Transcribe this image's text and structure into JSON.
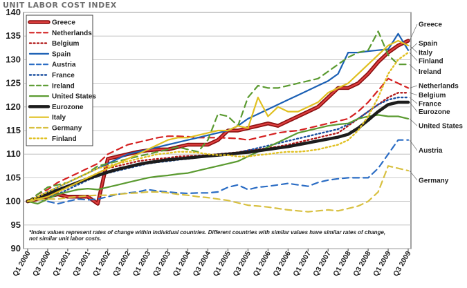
{
  "chart_data": {
    "type": "line",
    "title": "UNIT LABOR COST INDEX",
    "ylim": [
      90,
      140
    ],
    "yticks": [
      90,
      95,
      100,
      105,
      110,
      115,
      120,
      125,
      130,
      135,
      140
    ],
    "categories": [
      "Q1 2000",
      "Q2 2000",
      "Q3 2000",
      "Q4 2000",
      "Q1 2001",
      "Q2 2001",
      "Q3 2001",
      "Q4 2001",
      "Q1 2002",
      "Q2 2002",
      "Q3 2002",
      "Q4 2002",
      "Q1 2003",
      "Q2 2003",
      "Q3 2003",
      "Q4 2003",
      "Q1 2004",
      "Q2 2004",
      "Q3 2004",
      "Q4 2004",
      "Q1 2005",
      "Q2 2005",
      "Q3 2005",
      "Q4 2005",
      "Q1 2006",
      "Q2 2006",
      "Q3 2006",
      "Q4 2006",
      "Q1 2007",
      "Q2 2007",
      "Q3 2007",
      "Q4 2007",
      "Q1 2008",
      "Q2 2008",
      "Q3 2008",
      "Q4 2008",
      "Q1 2009",
      "Q2 2009",
      "Q3 2009"
    ],
    "xtick_labels": [
      "Q1 2000",
      "Q3 2000",
      "Q1 2001",
      "Q3 2001",
      "Q1 2002",
      "Q3 2002",
      "Q1 2003",
      "Q3 2003",
      "Q1 2004",
      "Q3 2004",
      "Q1 2005",
      "Q3 2005",
      "Q1 2006",
      "Q3 2006",
      "Q1 2007",
      "Q3 2007",
      "Q1 2008",
      "Q3 2008",
      "Q1 2009",
      "Q3 2009"
    ],
    "grid": true,
    "legend_position": "top-left",
    "note_lines": [
      "*Index values represent rates of change within individual countries.  Different countries with similar values have similar rates of change,",
      "not similar unit labor costs."
    ],
    "series": [
      {
        "name": "Greece",
        "color": "#c01818",
        "style": "greece",
        "label": "Greece",
        "values": [
          100,
          100.5,
          101,
          101.5,
          101,
          101,
          101,
          99.5,
          109,
          109.5,
          110,
          110.5,
          110.8,
          111,
          111,
          111.5,
          112,
          112,
          112,
          113,
          115,
          115,
          115.5,
          116,
          116.5,
          116,
          117,
          118,
          119,
          120,
          122,
          124,
          124,
          125,
          127,
          129.5,
          131.5,
          133,
          134
        ]
      },
      {
        "name": "Netherlands",
        "color": "#d42020",
        "style": "dash",
        "label": "Netherlands",
        "values": [
          100,
          101.5,
          102.5,
          104,
          105,
          106,
          107,
          108,
          110,
          111,
          112,
          112.5,
          113,
          113.5,
          113.8,
          113.8,
          113.7,
          113.5,
          113.5,
          113.5,
          113.4,
          113.3,
          113,
          113.5,
          114,
          114.5,
          114.8,
          115,
          115.5,
          116,
          116.5,
          117,
          117.5,
          119,
          121,
          123.5,
          126,
          125,
          124
        ]
      },
      {
        "name": "Belgium",
        "color": "#b01818",
        "style": "dot",
        "label": "Belgium",
        "values": [
          100,
          101,
          101.5,
          102,
          103,
          104,
          105,
          106,
          107,
          107.5,
          108,
          108.5,
          108.8,
          109,
          109.2,
          109.5,
          109.6,
          109.7,
          109.8,
          110,
          110.2,
          110.4,
          110.8,
          111,
          111.3,
          111.6,
          112,
          112.5,
          113,
          113.5,
          114,
          114.5,
          116,
          117.5,
          119,
          120.5,
          122,
          123,
          123
        ]
      },
      {
        "name": "Spain",
        "color": "#1a5fb4",
        "style": "solid",
        "label": "Spain",
        "values": [
          100,
          101,
          102,
          103,
          104,
          105,
          106,
          107,
          108,
          109,
          110,
          110.5,
          111,
          111.5,
          112,
          112.5,
          113,
          113.5,
          114,
          114.5,
          115,
          116,
          117.5,
          118.5,
          119.5,
          120.5,
          121.5,
          122.5,
          123.5,
          124.5,
          125.5,
          127,
          131.5,
          131.5,
          131.8,
          132,
          132.2,
          135.5,
          132
        ]
      },
      {
        "name": "Austria",
        "color": "#2a6cc4",
        "style": "dash",
        "label": "Austria",
        "values": [
          100,
          100.5,
          100,
          99.5,
          100,
          100.5,
          100.3,
          100.5,
          101,
          101.5,
          101.8,
          102,
          102.5,
          102.2,
          102,
          101.8,
          101.7,
          101.8,
          101.8,
          102,
          103,
          103.5,
          102.5,
          103,
          103.2,
          103.5,
          103.8,
          103.5,
          103.2,
          104,
          104.5,
          104.8,
          105,
          105,
          105,
          107,
          110,
          113,
          113
        ]
      },
      {
        "name": "France",
        "color": "#1a4fa0",
        "style": "dot",
        "label": "France",
        "values": [
          100,
          100.5,
          101,
          101.5,
          102.5,
          103.5,
          104.5,
          105.3,
          106,
          106.5,
          107,
          107.5,
          108,
          108.3,
          108.5,
          108.8,
          109,
          109.3,
          109.5,
          109.7,
          110,
          110.3,
          110.8,
          111.3,
          111.8,
          112.3,
          112.8,
          113.3,
          113.8,
          114.3,
          114.8,
          115.3,
          116.3,
          117.5,
          119,
          120.5,
          121.5,
          122,
          122
        ]
      },
      {
        "name": "Ireland",
        "color": "#5a9a30",
        "style": "dash",
        "label": "Ireland",
        "values": [
          100,
          101.5,
          103,
          103.5,
          104,
          105,
          106,
          107.5,
          108,
          108.5,
          109,
          109.5,
          110,
          110.5,
          111,
          111.5,
          111,
          110.5,
          113,
          118.5,
          118,
          116,
          122,
          124.5,
          124,
          124,
          124.5,
          125,
          125.5,
          126,
          127.5,
          129,
          130.5,
          131.5,
          132,
          136,
          131,
          129,
          129
        ]
      },
      {
        "name": "United States",
        "color": "#5a9a30",
        "style": "solid",
        "label": "United States",
        "values": [
          100,
          99.5,
          100.5,
          101.5,
          102,
          102.5,
          102.7,
          102.5,
          103,
          103.5,
          104,
          104.5,
          105,
          105.3,
          105.5,
          105.8,
          106,
          106.5,
          107,
          107.5,
          108,
          108.5,
          109.5,
          110.5,
          111.5,
          112.5,
          113.5,
          114.5,
          115,
          115.5,
          116,
          116.3,
          116.5,
          117.5,
          118,
          118.3,
          118,
          118,
          117.5
        ]
      },
      {
        "name": "Eurozone",
        "color": "#2a2a2a",
        "style": "euro",
        "label": "Eurozone",
        "values": [
          100,
          100.8,
          101.6,
          102.4,
          103.2,
          104,
          104.8,
          105.5,
          106.2,
          106.8,
          107.3,
          107.8,
          108.2,
          108.5,
          108.8,
          109,
          109.2,
          109.4,
          109.6,
          109.8,
          110,
          110.2,
          110.4,
          110.7,
          111,
          111.3,
          111.6,
          112,
          112.4,
          112.8,
          113.2,
          113.6,
          114.2,
          115.5,
          117.2,
          119,
          120.5,
          121,
          121
        ]
      },
      {
        "name": "Italy",
        "color": "#e0c020",
        "style": "solid",
        "label": "Italy",
        "values": [
          100,
          100.5,
          101,
          102,
          103,
          104,
          105,
          106,
          107,
          108,
          109,
          110,
          111,
          112,
          113,
          113.5,
          113.5,
          114,
          114.5,
          115,
          115,
          116,
          115.5,
          122,
          118,
          120,
          119,
          119,
          120,
          121,
          123,
          124,
          125,
          127,
          129,
          131,
          133,
          134,
          133
        ]
      },
      {
        "name": "Germany",
        "color": "#d8c040",
        "style": "dash",
        "label": "Germany",
        "values": [
          100,
          100.3,
          100.5,
          100.5,
          100.8,
          101,
          101.2,
          101.3,
          101.3,
          101.5,
          101.7,
          101.8,
          102,
          102,
          101.8,
          101.5,
          101.3,
          101,
          100.8,
          100.5,
          100.2,
          99.7,
          99.2,
          99,
          98.8,
          98.5,
          98.2,
          98,
          97.8,
          98,
          98.2,
          98,
          98.5,
          99,
          100,
          102,
          107.5,
          107,
          106.5
        ]
      },
      {
        "name": "Finland",
        "color": "#e0c020",
        "style": "dot",
        "label": "Finland",
        "values": [
          100,
          101,
          102,
          103,
          104,
          105,
          106,
          107,
          107.5,
          108,
          108.5,
          109,
          109.5,
          110,
          110.2,
          110.5,
          110.5,
          110.3,
          110,
          109.8,
          109.8,
          109.5,
          109.5,
          109.8,
          110,
          110.3,
          110.5,
          110.5,
          110.7,
          111,
          111.5,
          112,
          113,
          115,
          118,
          122,
          127,
          130,
          131.5
        ]
      }
    ],
    "end_labels": [
      {
        "text": "Greece",
        "value": 137.5
      },
      {
        "text": "Spain",
        "value": 133.5
      },
      {
        "text": "Italy",
        "value": 131.5
      },
      {
        "text": "Finland",
        "value": 129.8
      },
      {
        "text": "Ireland",
        "value": 127.5
      },
      {
        "text": "Netherlands",
        "value": 124.5
      },
      {
        "text": "Belgium",
        "value": 122.5
      },
      {
        "text": "France",
        "value": 120.7
      },
      {
        "text": "Eurozone",
        "value": 119
      },
      {
        "text": "United States",
        "value": 116
      },
      {
        "text": "Austria",
        "value": 110.8
      },
      {
        "text": "Germany",
        "value": 104.5
      }
    ]
  }
}
